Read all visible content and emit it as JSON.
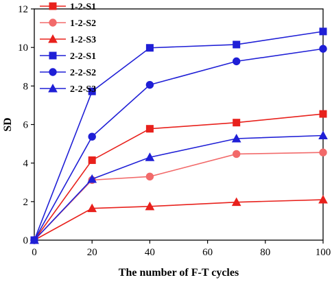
{
  "chart_data": {
    "type": "line",
    "title": "",
    "xlabel": "The number of F-T cycles",
    "ylabel": "SD",
    "xlim": [
      0,
      100
    ],
    "ylim": [
      0,
      12
    ],
    "xticks": [
      0,
      20,
      40,
      60,
      80,
      100
    ],
    "yticks": [
      0,
      2,
      4,
      6,
      8,
      10,
      12
    ],
    "grid": false,
    "legend_position": "top-left",
    "x": [
      0,
      20,
      40,
      70,
      100
    ],
    "series": [
      {
        "name": "1-2-S1",
        "color": "#e8211c",
        "marker": "square",
        "values": [
          0,
          4.15,
          5.78,
          6.1,
          6.55
        ]
      },
      {
        "name": "1-2-S2",
        "color": "#f26a6a",
        "marker": "circle",
        "values": [
          0,
          3.12,
          3.3,
          4.47,
          4.55
        ]
      },
      {
        "name": "1-2-S3",
        "color": "#e8211c",
        "marker": "triangle",
        "values": [
          0,
          1.65,
          1.75,
          1.97,
          2.1
        ]
      },
      {
        "name": "2-2-S1",
        "color": "#1f1fd6",
        "marker": "square",
        "values": [
          0,
          7.72,
          9.98,
          10.15,
          10.83
        ]
      },
      {
        "name": "2-2-S2",
        "color": "#1f1fd6",
        "marker": "circle",
        "values": [
          0,
          5.37,
          8.06,
          9.28,
          9.93
        ]
      },
      {
        "name": "2-2-S3",
        "color": "#1f1fd6",
        "marker": "triangle",
        "values": [
          0,
          3.17,
          4.3,
          5.27,
          5.43
        ]
      }
    ]
  }
}
